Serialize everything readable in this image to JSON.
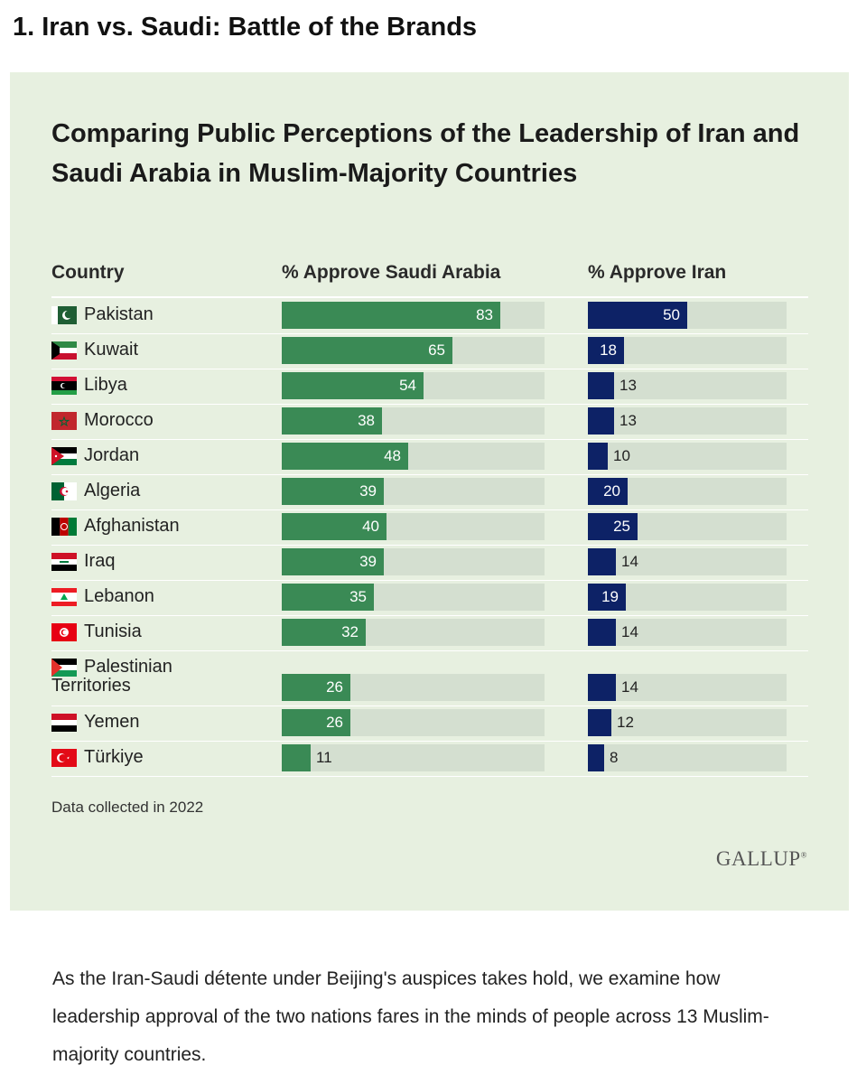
{
  "heading": "1. Iran vs. Saudi: Battle of the Brands",
  "card": {
    "title": "Comparing Public Perceptions of the Leadership of Iran and Saudi Arabia in Muslim-Majority Countries",
    "footnote": "Data collected in 2022",
    "logo": "GALLUP"
  },
  "chart_data": {
    "type": "bar",
    "orientation": "horizontal",
    "title": "Comparing Public Perceptions of the Leadership of Iran and Saudi Arabia in Muslim-Majority Countries",
    "column_headers": [
      "Country",
      "% Approve Saudi Arabia",
      "% Approve Iran"
    ],
    "categories": [
      "Pakistan",
      "Kuwait",
      "Libya",
      "Morocco",
      "Jordan",
      "Algeria",
      "Afghanistan",
      "Iraq",
      "Lebanon",
      "Tunisia",
      "Palestinian Territories",
      "Yemen",
      "Türkiye"
    ],
    "series": [
      {
        "name": "% Approve Saudi Arabia",
        "color": "#3a8a55",
        "values": [
          83,
          65,
          54,
          38,
          48,
          39,
          40,
          39,
          35,
          32,
          26,
          26,
          11
        ]
      },
      {
        "name": "% Approve Iran",
        "color": "#0d2266",
        "values": [
          50,
          18,
          13,
          13,
          10,
          20,
          25,
          14,
          19,
          14,
          14,
          12,
          8
        ]
      }
    ],
    "xlim": [
      0,
      100
    ],
    "footnote": "Data collected in 2022"
  },
  "body_text": "As the Iran-Saudi détente under Beijing's auspices takes hold, we examine how leadership approval of the two nations fares in the minds of people across 13 Muslim-majority countries."
}
